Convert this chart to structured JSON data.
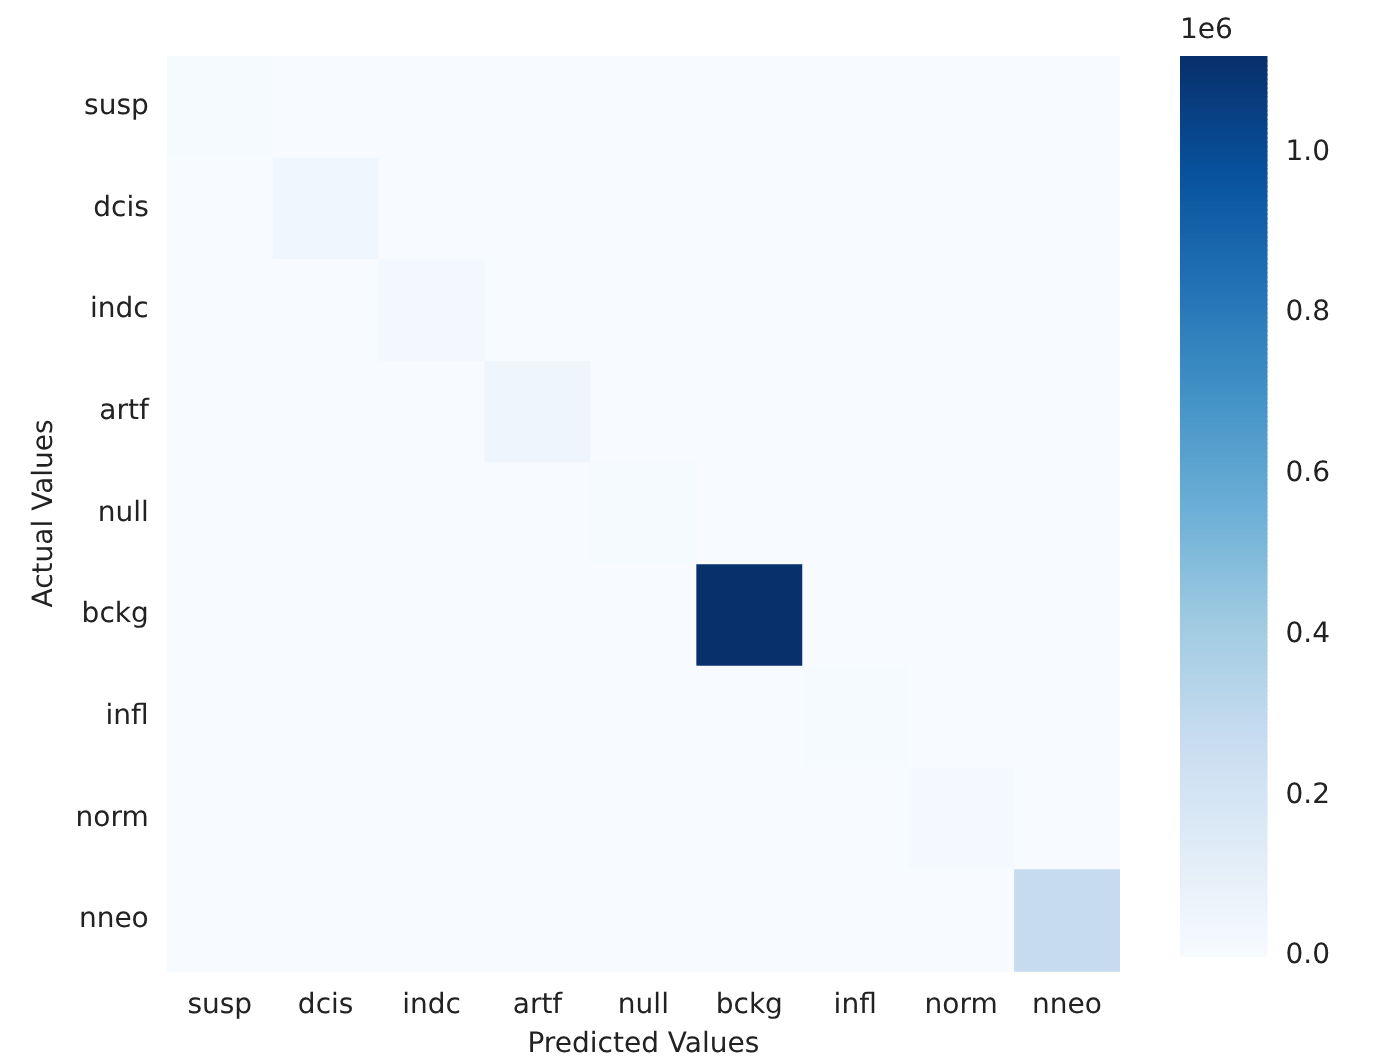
{
  "chart_data": {
    "type": "heatmap",
    "xlabel": "Predicted Values",
    "ylabel": "Actual Values",
    "categories": [
      "susp",
      "dcis",
      "indc",
      "artf",
      "null",
      "bckg",
      "infl",
      "norm",
      "nneo"
    ],
    "y_categories": [
      "susp",
      "dcis",
      "indc",
      "artf",
      "null",
      "bckg",
      "infl",
      "norm",
      "nneo"
    ],
    "cells": [
      [
        0.01,
        0,
        0,
        0,
        0,
        0,
        0,
        0,
        0
      ],
      [
        0,
        0.04,
        0,
        0,
        0,
        0,
        0,
        0,
        0
      ],
      [
        0,
        0,
        0.03,
        0,
        0,
        0,
        0,
        0,
        0
      ],
      [
        0,
        0,
        0,
        0.05,
        0,
        0,
        0,
        0,
        0
      ],
      [
        0,
        0,
        0,
        0,
        0.01,
        0,
        0,
        0,
        0
      ],
      [
        0,
        0,
        0,
        0,
        0,
        1.12,
        0,
        0,
        0
      ],
      [
        0,
        0,
        0,
        0,
        0,
        0,
        0.01,
        0,
        0
      ],
      [
        0,
        0,
        0,
        0,
        0,
        0,
        0,
        0.02,
        0
      ],
      [
        0,
        0,
        0,
        0,
        0,
        0,
        0,
        0,
        0.28
      ]
    ],
    "clim": [
      0,
      1.12
    ],
    "cticks": [
      {
        "value": 0,
        "label": "0.0"
      },
      {
        "value": 0.2,
        "label": "0.2"
      },
      {
        "value": 0.4,
        "label": "0.4"
      },
      {
        "value": 0.6,
        "label": "0.6"
      },
      {
        "value": 0.8,
        "label": "0.8"
      },
      {
        "value": 1,
        "label": "1.0"
      }
    ],
    "annotations": [
      "1e6"
    ]
  }
}
